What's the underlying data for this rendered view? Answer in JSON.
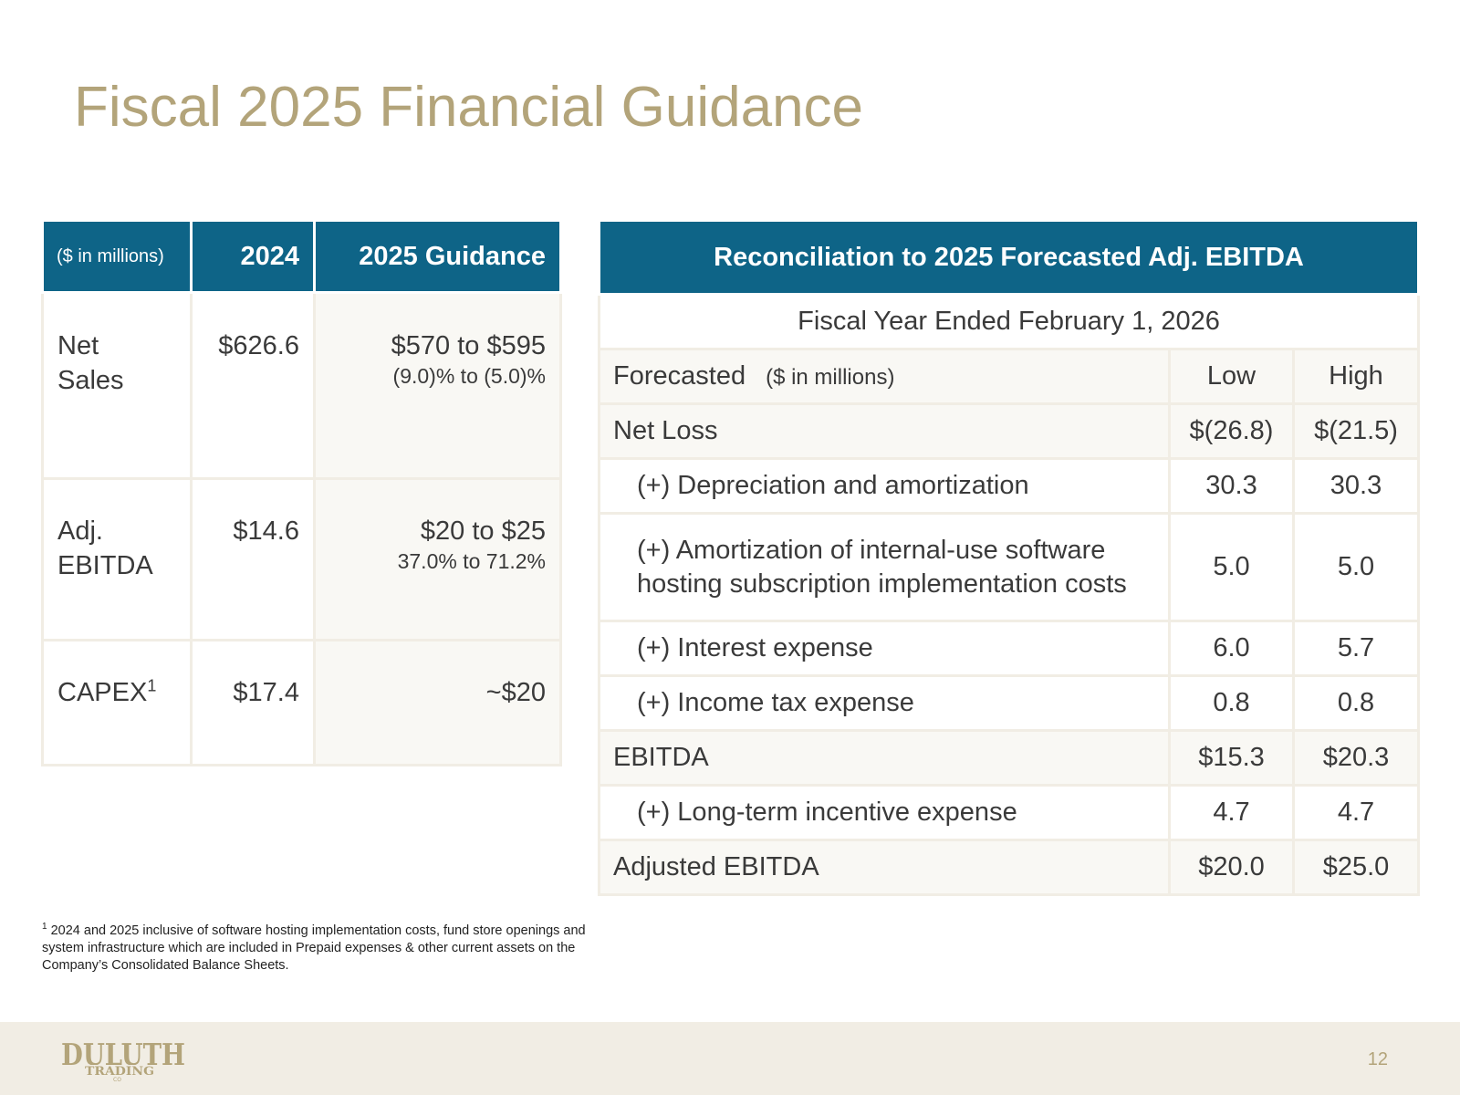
{
  "title": "Fiscal 2025 Financial Guidance",
  "left_table": {
    "headers": [
      "($ in millions)",
      "2024",
      "2025 Guidance"
    ],
    "rows": [
      {
        "label": "Net Sales",
        "y2024": "$626.6",
        "guidance": "$570 to $595",
        "guidance_sub": "(9.0)% to (5.0)%"
      },
      {
        "label": "Adj. EBITDA",
        "y2024": "$14.6",
        "guidance": "$20 to $25",
        "guidance_sub": "37.0% to 71.2%"
      },
      {
        "label": "CAPEX",
        "label_sup": "1",
        "y2024": "$17.4",
        "guidance": "~$20",
        "guidance_sub": ""
      }
    ]
  },
  "right_table": {
    "title": "Reconciliation to 2025 Forecasted Adj. EBITDA",
    "subtitle": "Fiscal Year Ended February 1, 2026",
    "col_label": "Forecasted",
    "col_unit": "($ in millions)",
    "col_low": "Low",
    "col_high": "High",
    "rows": [
      {
        "label": "Net Loss",
        "low": "$(26.8)",
        "high": "$(21.5)"
      },
      {
        "label": "(+) Depreciation and amortization",
        "low": "30.3",
        "high": "30.3"
      },
      {
        "label": "(+) Amortization of internal-use software hosting subscription implementation costs",
        "low": "5.0",
        "high": "5.0"
      },
      {
        "label": "(+) Interest expense",
        "low": "6.0",
        "high": "5.7"
      },
      {
        "label": "(+) Income tax expense",
        "low": "0.8",
        "high": "0.8"
      },
      {
        "label": "EBITDA",
        "low": "$15.3",
        "high": "$20.3"
      },
      {
        "label": "(+) Long-term incentive expense",
        "low": "4.7",
        "high": "4.7"
      },
      {
        "label": "Adjusted EBITDA",
        "low": "$20.0",
        "high": "$25.0"
      }
    ]
  },
  "footnote": {
    "marker": "1",
    "text": "2024 and 2025 inclusive of software hosting implementation costs, fund store openings and system infrastructure which are included in Prepaid expenses & other current assets on the Company’s Consolidated Balance Sheets."
  },
  "footer": {
    "logo": {
      "line1": "DULUTH",
      "line2": "TRADING",
      "line3": "CO"
    },
    "page_number": "12",
    "colors": {
      "accent": "#b3a47a",
      "header": "#0e6487",
      "footer_bg": "#f1ede4"
    }
  }
}
